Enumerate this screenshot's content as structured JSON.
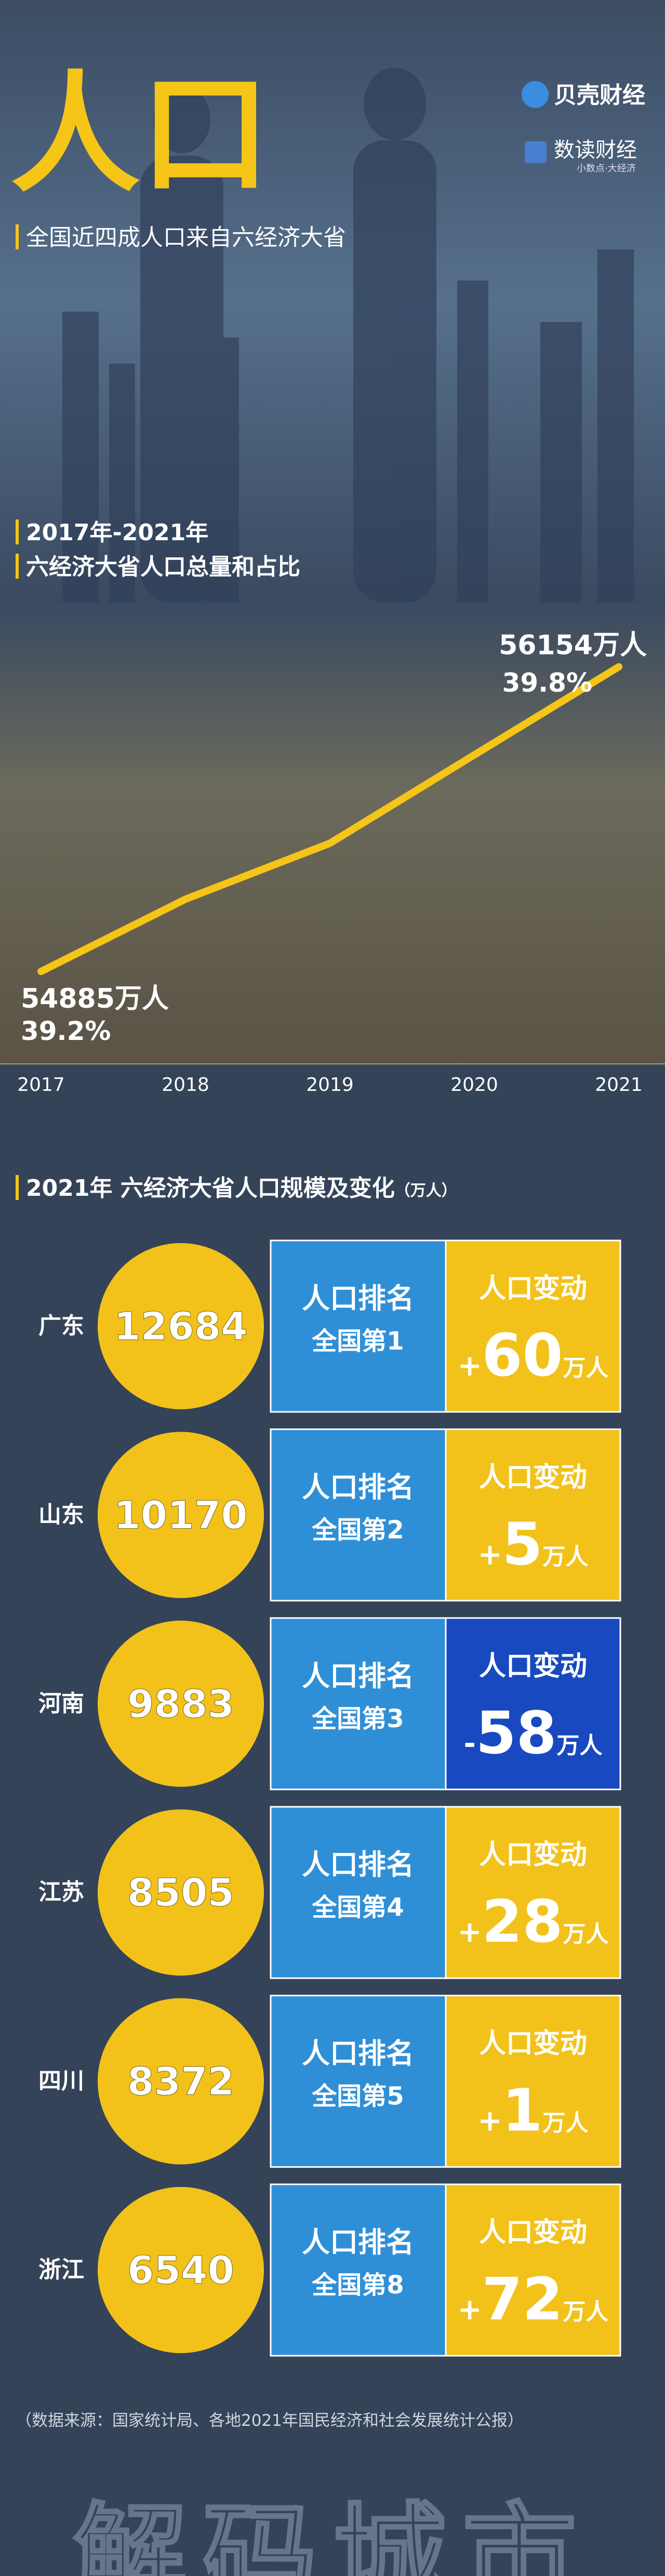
{
  "header": {
    "title": "人口",
    "subtitle": "全国近四成人口来自六经济大省",
    "logo_1": "贝壳财经",
    "logo_2": "数读财经",
    "logo_2_tagline": "小数点·大经济"
  },
  "chart_data": {
    "type": "line",
    "heading_1": "2017年-2021年",
    "heading_2": "六经济大省人口总量和占比",
    "categories": [
      "2017",
      "2018",
      "2019",
      "2020",
      "2021"
    ],
    "values": [
      54885,
      55186,
      55419,
      55787,
      56154
    ],
    "value_labels": [
      "54885万人",
      null,
      null,
      null,
      "56154万人"
    ],
    "share_labels": [
      "39.2%",
      null,
      null,
      null,
      "39.8%"
    ],
    "color": "#f5c518",
    "ylim": [
      54500,
      56400
    ]
  },
  "section": {
    "title": "2021年 六经济大省人口规模及变化",
    "unit": "（万人）",
    "rank_heading": "人口排名",
    "change_heading": "人口变动",
    "change_unit": "万人"
  },
  "rows": [
    {
      "province": "广东",
      "population": 12684,
      "rank": "全国第1",
      "change_sign": "+",
      "change": 60,
      "change_color": "#f2c21b"
    },
    {
      "province": "山东",
      "population": 10170,
      "rank": "全国第2",
      "change_sign": "+",
      "change": 5,
      "change_color": "#f2c21b"
    },
    {
      "province": "河南",
      "population": 9883,
      "rank": "全国第3",
      "change_sign": "-",
      "change": 58,
      "change_color": "#1849c0"
    },
    {
      "province": "江苏",
      "population": 8505,
      "rank": "全国第4",
      "change_sign": "+",
      "change": 28,
      "change_color": "#f2c21b"
    },
    {
      "province": "四川",
      "population": 8372,
      "rank": "全国第5",
      "change_sign": "+",
      "change": 1,
      "change_color": "#f2c21b"
    },
    {
      "province": "浙江",
      "population": 6540,
      "rank": "全国第8",
      "change_sign": "+",
      "change": 72,
      "change_color": "#f2c21b"
    }
  ],
  "footer": {
    "source": "（数据来源：国家统计局、各地2021年国民经济和社会发展统计公报）",
    "watermark": "解码城市"
  }
}
